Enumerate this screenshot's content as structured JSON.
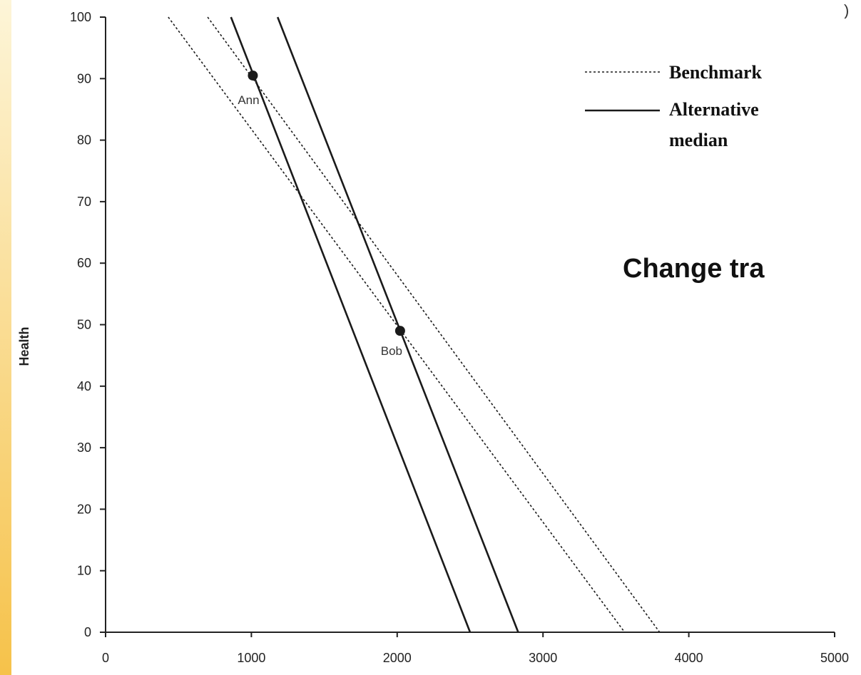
{
  "colors": {
    "band_top": "#fdf5d8",
    "band_bottom": "#f6c24a",
    "line": "#1a1a1a",
    "axis": "#222222"
  },
  "caption": "Change tra",
  "corner_mark": ")",
  "chart_data": {
    "type": "line",
    "title": "",
    "xlabel": "",
    "ylabel": "Health",
    "xlim": [
      0,
      5000
    ],
    "ylim": [
      0,
      100
    ],
    "xticks": [
      "0",
      "1000",
      "2000",
      "3000",
      "4000",
      "5000"
    ],
    "yticks": [
      "0",
      "10",
      "20",
      "30",
      "40",
      "50",
      "60",
      "70",
      "80",
      "90",
      "100"
    ],
    "grid": false,
    "legend_position": "top-right",
    "legend": [
      {
        "label": "Benchmark",
        "style": "dashed"
      },
      {
        "label": "Alternative median",
        "lines": [
          "Alternative",
          "median"
        ],
        "style": "solid"
      }
    ],
    "series": [
      {
        "style": "solid",
        "x": [
          860,
          2500
        ],
        "y": [
          100,
          0
        ]
      },
      {
        "style": "solid",
        "x": [
          1180,
          2830
        ],
        "y": [
          100,
          0
        ]
      },
      {
        "style": "dashed",
        "x": [
          430,
          3560
        ],
        "y": [
          100,
          0
        ]
      },
      {
        "style": "dashed",
        "x": [
          700,
          3800
        ],
        "y": [
          100,
          0
        ]
      }
    ],
    "points": [
      {
        "label": "Ann",
        "x": 1010,
        "y": 90.5
      },
      {
        "label": "Bob",
        "x": 2020,
        "y": 49
      }
    ]
  }
}
